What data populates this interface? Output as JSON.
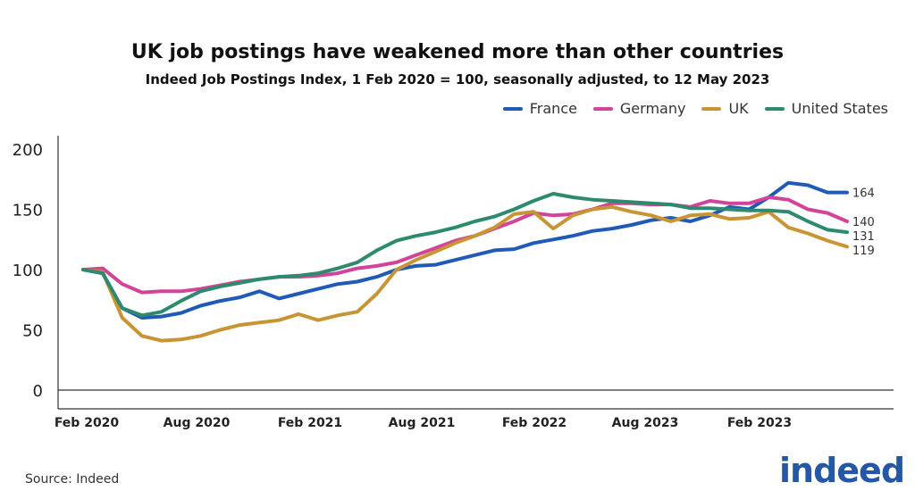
{
  "chart_data": {
    "type": "line",
    "title": "UK job postings have weakened more than other countries",
    "subtitle": "Indeed Job Postings Index, 1 Feb 2020 = 100, seasonally adjusted, to 12 May 2023",
    "x": [
      "2020-02",
      "2020-03",
      "2020-04",
      "2020-05",
      "2020-06",
      "2020-07",
      "2020-08",
      "2020-09",
      "2020-10",
      "2020-11",
      "2020-12",
      "2021-01",
      "2021-02",
      "2021-03",
      "2021-04",
      "2021-05",
      "2021-06",
      "2021-07",
      "2021-08",
      "2021-09",
      "2021-10",
      "2021-11",
      "2021-12",
      "2022-01",
      "2022-02",
      "2022-03",
      "2022-04",
      "2022-05",
      "2022-06",
      "2022-07",
      "2022-08",
      "2022-09",
      "2022-10",
      "2022-11",
      "2022-12",
      "2023-01",
      "2023-02",
      "2023-03",
      "2023-04",
      "2023-05"
    ],
    "x_tick_labels": [
      "Feb 2020",
      "Aug 2020",
      "Feb 2021",
      "Aug 2021",
      "Feb 2022",
      "Aug 2023",
      "Feb 2023"
    ],
    "y_ticks": [
      0,
      50,
      100,
      150,
      200
    ],
    "ylim": [
      0,
      200
    ],
    "grid": false,
    "legend_position": "top-right",
    "series": [
      {
        "name": "France",
        "color": "#1f5bb5",
        "end_label": "164",
        "values": [
          100,
          97,
          68,
          60,
          61,
          64,
          70,
          74,
          77,
          82,
          76,
          80,
          84,
          88,
          90,
          94,
          100,
          103,
          104,
          108,
          112,
          116,
          117,
          122,
          125,
          128,
          132,
          134,
          137,
          141,
          143,
          140,
          145,
          152,
          150,
          160,
          172,
          170,
          164,
          164
        ]
      },
      {
        "name": "Germany",
        "color": "#d2449a",
        "end_label": "140",
        "values": [
          100,
          101,
          88,
          81,
          82,
          82,
          84,
          87,
          90,
          92,
          94,
          94,
          95,
          97,
          101,
          103,
          106,
          112,
          118,
          124,
          128,
          134,
          140,
          147,
          145,
          146,
          150,
          155,
          155,
          154,
          154,
          152,
          157,
          155,
          155,
          160,
          158,
          150,
          147,
          140
        ]
      },
      {
        "name": "UK",
        "color": "#c99434",
        "end_label": "119",
        "values": [
          100,
          98,
          60,
          45,
          41,
          42,
          45,
          50,
          54,
          56,
          58,
          63,
          58,
          62,
          65,
          80,
          100,
          108,
          115,
          122,
          128,
          135,
          146,
          148,
          134,
          145,
          150,
          152,
          148,
          145,
          140,
          145,
          146,
          142,
          143,
          148,
          135,
          130,
          124,
          119
        ]
      },
      {
        "name": "United States",
        "color": "#2e8a6e",
        "end_label": "131",
        "values": [
          100,
          97,
          68,
          62,
          65,
          74,
          82,
          86,
          89,
          92,
          94,
          95,
          97,
          101,
          106,
          116,
          124,
          128,
          131,
          135,
          140,
          144,
          150,
          157,
          163,
          160,
          158,
          157,
          156,
          155,
          154,
          151,
          151,
          150,
          149,
          149,
          148,
          140,
          133,
          131
        ]
      }
    ]
  },
  "source": "Source: Indeed",
  "logo": "indeed"
}
